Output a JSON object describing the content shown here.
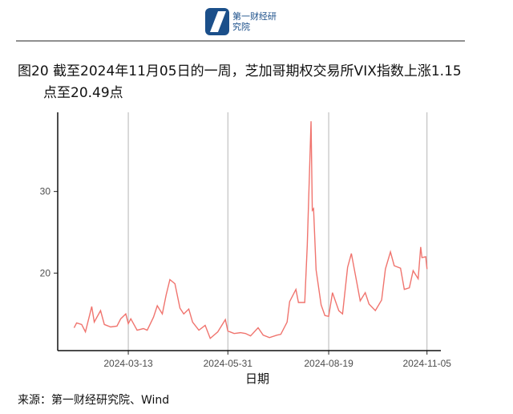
{
  "header": {
    "logo": "第一财经研究院"
  },
  "chart_data": {
    "type": "line",
    "title": "图20  截至2024年11月05日的一周，芝加哥期权交易所VIX指数上涨1.15点至20.49点",
    "x_label": "日期",
    "x": [
      "2024-01-30",
      "2024-02-01",
      "2024-02-05",
      "2024-02-08",
      "2024-02-13",
      "2024-02-15",
      "2024-02-20",
      "2024-02-23",
      "2024-02-28",
      "2024-03-04",
      "2024-03-07",
      "2024-03-11",
      "2024-03-13",
      "2024-03-15",
      "2024-03-20",
      "2024-03-25",
      "2024-03-28",
      "2024-04-02",
      "2024-04-05",
      "2024-04-09",
      "2024-04-12",
      "2024-04-15",
      "2024-04-19",
      "2024-04-23",
      "2024-04-26",
      "2024-04-30",
      "2024-05-03",
      "2024-05-08",
      "2024-05-13",
      "2024-05-17",
      "2024-05-23",
      "2024-05-29",
      "2024-05-31",
      "2024-06-05",
      "2024-06-10",
      "2024-06-14",
      "2024-06-18",
      "2024-06-24",
      "2024-06-28",
      "2024-07-03",
      "2024-07-09",
      "2024-07-12",
      "2024-07-17",
      "2024-07-19",
      "2024-07-24",
      "2024-07-26",
      "2024-07-31",
      "2024-08-02",
      "2024-08-05",
      "2024-08-06",
      "2024-08-07",
      "2024-08-09",
      "2024-08-13",
      "2024-08-16",
      "2024-08-19",
      "2024-08-22",
      "2024-08-27",
      "2024-08-30",
      "2024-09-03",
      "2024-09-06",
      "2024-09-10",
      "2024-09-13",
      "2024-09-17",
      "2024-09-20",
      "2024-09-25",
      "2024-09-30",
      "2024-10-03",
      "2024-10-07",
      "2024-10-10",
      "2024-10-15",
      "2024-10-18",
      "2024-10-22",
      "2024-10-25",
      "2024-10-29",
      "2024-10-31",
      "2024-11-01",
      "2024-11-04",
      "2024-11-05"
    ],
    "series": [
      {
        "color": "#f0746e",
        "values": [
          13.3,
          13.9,
          13.7,
          12.8,
          15.9,
          14.0,
          15.4,
          13.7,
          13.4,
          13.5,
          14.4,
          15.0,
          13.8,
          14.4,
          13.0,
          13.2,
          13.0,
          14.6,
          16.0,
          15.0,
          17.3,
          19.2,
          18.7,
          15.7,
          15.0,
          15.6,
          14.0,
          13.0,
          13.6,
          12.0,
          12.8,
          14.3,
          12.9,
          12.6,
          12.7,
          12.6,
          12.3,
          13.3,
          12.4,
          12.1,
          12.4,
          12.5,
          14.0,
          16.5,
          18.0,
          16.4,
          16.4,
          23.4,
          38.6,
          27.7,
          27.9,
          20.4,
          16.1,
          14.8,
          14.7,
          17.6,
          15.4,
          15.0,
          20.7,
          22.4,
          19.1,
          16.6,
          17.6,
          16.2,
          15.4,
          16.7,
          20.5,
          22.6,
          20.9,
          20.6,
          18.0,
          18.2,
          20.3,
          19.3,
          23.2,
          21.9,
          22.0,
          20.5
        ]
      }
    ],
    "xlim": [
      "2024-01-17",
      "2024-11-16"
    ],
    "xticks": [
      "2024-03-13",
      "2024-05-31",
      "2024-08-19",
      "2024-11-05"
    ],
    "ylim": [
      10.5,
      39.7
    ],
    "yticks": [
      20,
      30
    ],
    "grid": "x"
  },
  "source": "来源：第一财经研究院、Wind"
}
